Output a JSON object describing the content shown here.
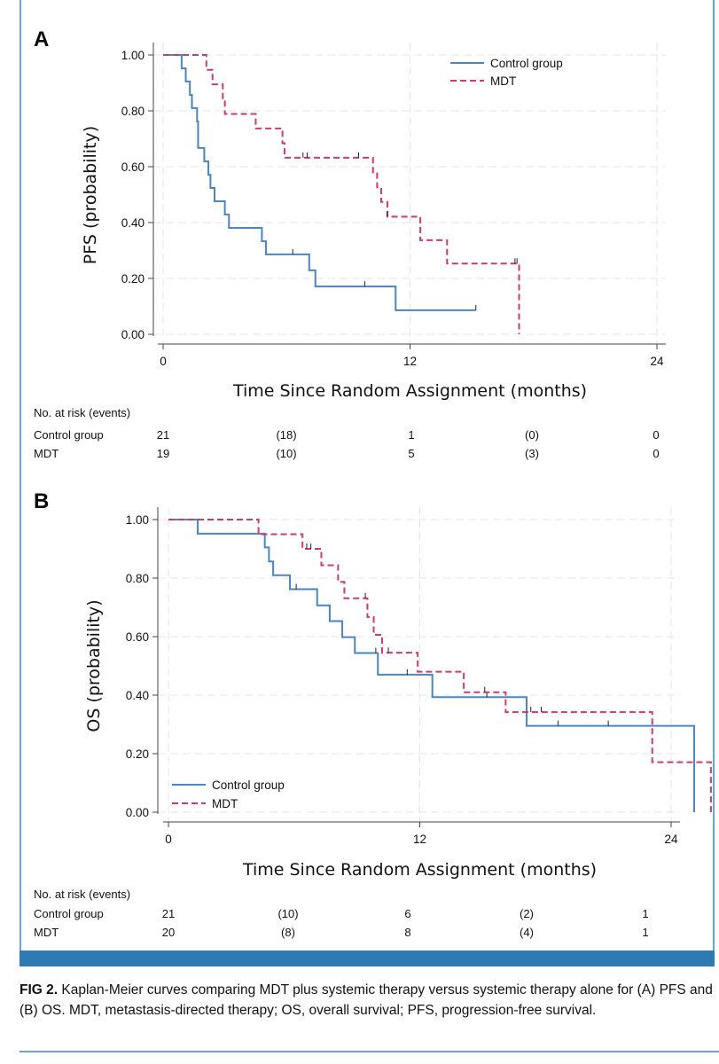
{
  "chart_data": [
    {
      "panel": "A",
      "type": "line",
      "xlabel": "Time Since Random Assignment (months)",
      "ylabel": "PFS (probability)",
      "xlim": [
        0,
        24
      ],
      "ylim": [
        0,
        1
      ],
      "xticks": [
        "0",
        "12",
        "24"
      ],
      "xtick_values": [
        0,
        12,
        24
      ],
      "yticks": [
        "0.00",
        "0.20",
        "0.40",
        "0.60",
        "0.80",
        "1.00"
      ],
      "ytick_values": [
        0,
        0.2,
        0.4,
        0.6,
        0.8,
        1
      ],
      "grid": true,
      "legend_position": "top-right",
      "series": [
        {
          "name": "Control group",
          "color": "#4a86c0",
          "dash": "solid",
          "steps": [
            [
              0,
              1.0
            ],
            [
              0.9,
              0.952
            ],
            [
              1.1,
              0.905
            ],
            [
              1.3,
              0.857
            ],
            [
              1.4,
              0.81
            ],
            [
              1.65,
              0.762
            ],
            [
              1.7,
              0.667
            ],
            [
              2.0,
              0.619
            ],
            [
              2.2,
              0.571
            ],
            [
              2.3,
              0.524
            ],
            [
              2.5,
              0.476
            ],
            [
              3.0,
              0.429
            ],
            [
              3.2,
              0.381
            ],
            [
              4.8,
              0.333
            ],
            [
              5.0,
              0.286
            ],
            [
              6.5,
              0.286
            ],
            [
              6.6,
              0.286
            ],
            [
              7.1,
              0.229
            ],
            [
              7.3,
              0.229
            ],
            [
              7.3,
              0.229
            ],
            [
              7.4,
              0.171
            ],
            [
              11.0,
              0.171
            ],
            [
              11.3,
              0.086
            ],
            [
              15.2,
              0.086
            ]
          ],
          "censored": [
            [
              6.3,
              0.286
            ],
            [
              9.8,
              0.171
            ],
            [
              15.2,
              0.086
            ]
          ]
        },
        {
          "name": "MDT",
          "color": "#cc3a72",
          "dash": "dashed",
          "steps": [
            [
              0,
              1.0
            ],
            [
              2.1,
              0.947
            ],
            [
              2.4,
              0.895
            ],
            [
              2.9,
              0.842
            ],
            [
              3.0,
              0.789
            ],
            [
              4.5,
              0.737
            ],
            [
              5.8,
              0.684
            ],
            [
              5.9,
              0.632
            ],
            [
              9.8,
              0.632
            ],
            [
              10.2,
              0.579
            ],
            [
              10.4,
              0.526
            ],
            [
              10.6,
              0.474
            ],
            [
              10.9,
              0.421
            ],
            [
              12.4,
              0.421
            ],
            [
              12.5,
              0.337
            ],
            [
              13.8,
              0.253
            ],
            [
              17.3,
              0.253
            ],
            [
              17.3,
              0.0
            ]
          ],
          "censored": [
            [
              6.8,
              0.632
            ],
            [
              7.0,
              0.632
            ],
            [
              9.5,
              0.632
            ],
            [
              10.9,
              0.421
            ],
            [
              17.1,
              0.253
            ],
            [
              17.2,
              0.253
            ]
          ]
        }
      ],
      "risk_table": {
        "header": "No. at risk (events)",
        "rows": [
          {
            "label": "Control group",
            "values": [
              "21",
              "(18)",
              "1",
              "(0)",
              "0"
            ]
          },
          {
            "label": "MDT",
            "values": [
              "19",
              "(10)",
              "5",
              "(3)",
              "0"
            ]
          }
        ]
      }
    },
    {
      "panel": "B",
      "type": "line",
      "xlabel": "Time Since Random Assignment (months)",
      "ylabel": "OS (probability)",
      "xlim": [
        0,
        24
      ],
      "ylim": [
        0,
        1
      ],
      "xticks": [
        "0",
        "12",
        "24"
      ],
      "xtick_values": [
        0,
        12,
        24
      ],
      "yticks": [
        "0.00",
        "0.20",
        "0.40",
        "0.60",
        "0.80",
        "1.00"
      ],
      "ytick_values": [
        0,
        0.2,
        0.4,
        0.6,
        0.8,
        1
      ],
      "grid": true,
      "legend_position": "bottom-left",
      "series": [
        {
          "name": "Control group",
          "color": "#4a86c0",
          "dash": "solid",
          "steps": [
            [
              0,
              1.0
            ],
            [
              1.4,
              0.952
            ],
            [
              4.6,
              0.905
            ],
            [
              4.8,
              0.857
            ],
            [
              5.0,
              0.81
            ],
            [
              5.8,
              0.762
            ],
            [
              6.4,
              0.762
            ],
            [
              7.0,
              0.762
            ],
            [
              7.1,
              0.707
            ],
            [
              7.7,
              0.653
            ],
            [
              8.3,
              0.598
            ],
            [
              8.9,
              0.544
            ],
            [
              10.0,
              0.47
            ],
            [
              12.6,
              0.393
            ],
            [
              17.0,
              0.393
            ],
            [
              17.1,
              0.295
            ],
            [
              25.1,
              0.295
            ],
            [
              25.1,
              0.0
            ]
          ],
          "censored": [
            [
              6.1,
              0.762
            ],
            [
              9.9,
              0.544
            ],
            [
              11.4,
              0.47
            ],
            [
              15.2,
              0.393
            ],
            [
              18.6,
              0.295
            ],
            [
              21.0,
              0.295
            ]
          ]
        },
        {
          "name": "MDT",
          "color": "#cc3a72",
          "dash": "dashed",
          "steps": [
            [
              0,
              1.0
            ],
            [
              4.3,
              0.95
            ],
            [
              6.4,
              0.9
            ],
            [
              7.3,
              0.844
            ],
            [
              8.1,
              0.787
            ],
            [
              8.4,
              0.731
            ],
            [
              9.5,
              0.667
            ],
            [
              9.8,
              0.606
            ],
            [
              10.2,
              0.545
            ],
            [
              11.9,
              0.48
            ],
            [
              14.1,
              0.41
            ],
            [
              16.1,
              0.342
            ],
            [
              23.0,
              0.342
            ],
            [
              23.1,
              0.171
            ],
            [
              25.9,
              0.171
            ],
            [
              25.9,
              0.0
            ]
          ],
          "censored": [
            [
              6.6,
              0.9
            ],
            [
              6.8,
              0.9
            ],
            [
              9.4,
              0.731
            ],
            [
              10.5,
              0.545
            ],
            [
              15.1,
              0.41
            ],
            [
              17.3,
              0.342
            ],
            [
              17.8,
              0.342
            ]
          ]
        }
      ],
      "risk_table": {
        "header": "No. at risk (events)",
        "rows": [
          {
            "label": "Control group",
            "values": [
              "21",
              "(10)",
              "6",
              "(2)",
              "1"
            ]
          },
          {
            "label": "MDT",
            "values": [
              "20",
              "(8)",
              "8",
              "(4)",
              "1"
            ]
          }
        ]
      }
    }
  ],
  "caption": {
    "label": "FIG 2.",
    "text": "Kaplan-Meier curves comparing MDT plus systemic therapy versus systemic therapy alone for (A) PFS and (B) OS. MDT, metastasis-directed therapy; OS, overall survival; PFS, progression-free survival."
  },
  "colors": {
    "frame": "#6aa5cd",
    "bar": "#2f7ab0",
    "control": "#4a86c0",
    "mdt": "#cc3a72"
  }
}
